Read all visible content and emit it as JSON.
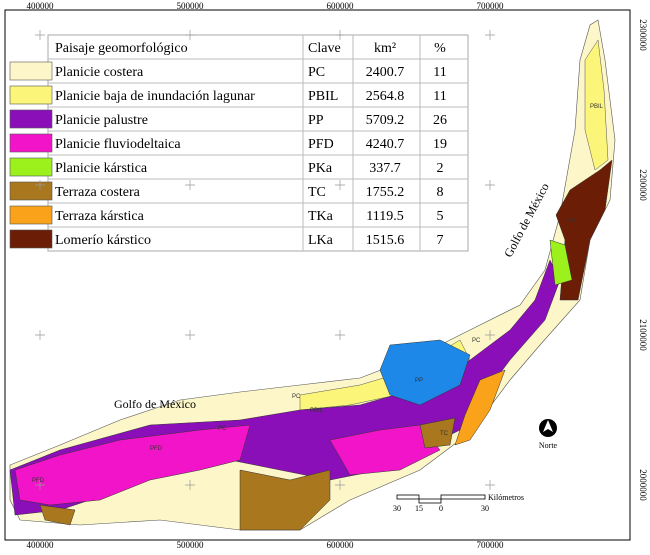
{
  "axes": {
    "x_labels": [
      "400000",
      "500000",
      "600000",
      "700000"
    ],
    "y_labels": [
      "2300000",
      "2200000",
      "2100000",
      "2000000"
    ]
  },
  "legend": {
    "header": [
      "Paisaje geomorfológico",
      "Clave",
      "km²",
      "%"
    ],
    "rows": [
      {
        "name": "Planicie costera",
        "code": "PC",
        "area": 2400.7,
        "percent": 11,
        "color": "#fcf6c8"
      },
      {
        "name": "Planicie baja de inundación lagunar",
        "code": "PBIL",
        "area": 2564.8,
        "percent": 11,
        "color": "#fbf57a"
      },
      {
        "name": "Planicie palustre",
        "code": "PP",
        "area": 5709.2,
        "percent": 26,
        "color": "#8a0fb8"
      },
      {
        "name": "Planicie fluviodeltaica",
        "code": "PFD",
        "area": 4240.7,
        "percent": 19,
        "color": "#f214c8"
      },
      {
        "name": "Planicie kárstica",
        "code": "PKa",
        "area": 337.7,
        "percent": 2,
        "color": "#9cf01c"
      },
      {
        "name": "Terraza costera",
        "code": "TC",
        "area": 1755.2,
        "percent": 8,
        "color": "#a8771e"
      },
      {
        "name": "Terraza kárstica",
        "code": "TKa",
        "area": 1119.5,
        "percent": 5,
        "color": "#f9a21a"
      },
      {
        "name": "Lomerío kárstico",
        "code": "LKa",
        "area": 1515.6,
        "percent": 7,
        "color": "#6b1d06"
      }
    ]
  },
  "annotations": {
    "gulf_west": "Golfo de México",
    "gulf_east": "Golfo de México",
    "north": "Norte"
  },
  "scale_bar": {
    "labels": [
      "30",
      "15",
      "0",
      "30"
    ],
    "unit": "Kilómetros"
  },
  "map_labels": [
    "PBIL",
    "LKa",
    "PC",
    "PC",
    "PBIL",
    "PP",
    "PFD",
    "PFD",
    "TC",
    "PC"
  ]
}
